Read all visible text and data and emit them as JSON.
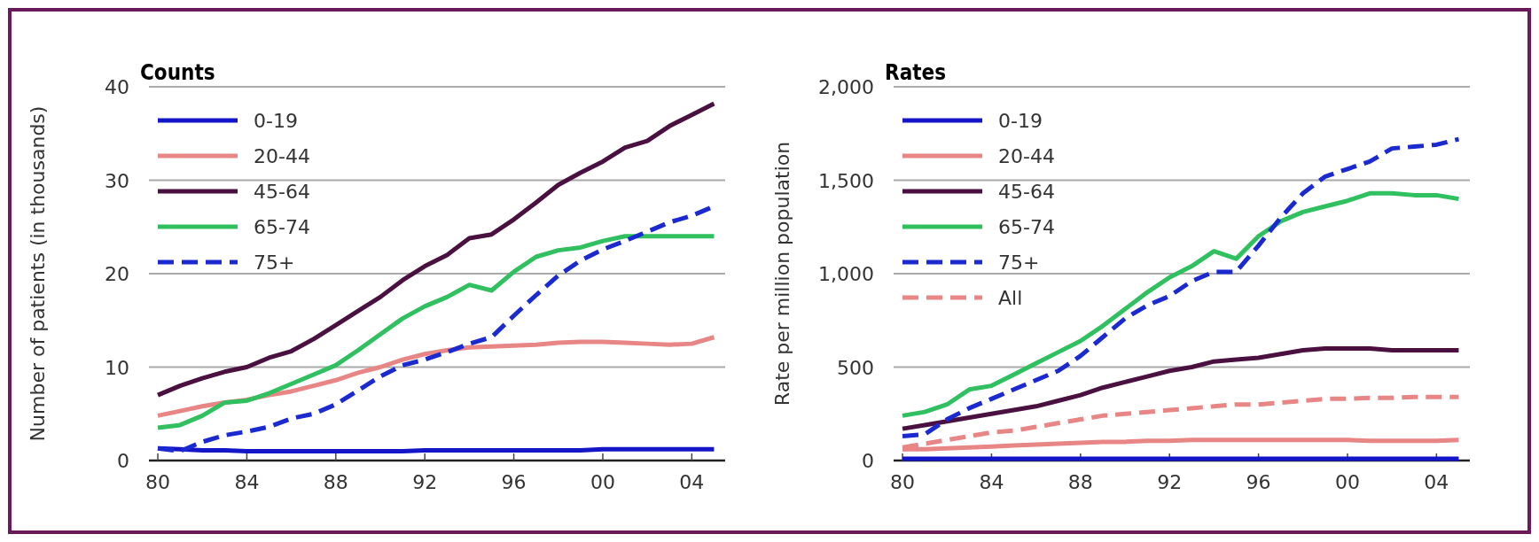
{
  "chart_data": [
    {
      "type": "line",
      "title": "Counts",
      "ylabel": "Number of patients (in thousands)",
      "x": [
        1980,
        1981,
        1982,
        1983,
        1984,
        1985,
        1986,
        1987,
        1988,
        1989,
        1990,
        1991,
        1992,
        1993,
        1994,
        1995,
        1996,
        1997,
        1998,
        1999,
        2000,
        2001,
        2002,
        2003,
        2004,
        2005
      ],
      "xlim": [
        1979.6,
        2005.5
      ],
      "xticks": [
        {
          "value": 1980,
          "label": "80"
        },
        {
          "value": 1984,
          "label": "84"
        },
        {
          "value": 1988,
          "label": "88"
        },
        {
          "value": 1992,
          "label": "92"
        },
        {
          "value": 1996,
          "label": "96"
        },
        {
          "value": 2000,
          "label": "00"
        },
        {
          "value": 2004,
          "label": "04"
        }
      ],
      "ylim": [
        0,
        40
      ],
      "yticks": [
        0,
        10,
        20,
        30,
        40
      ],
      "grid": "y",
      "legend": "top left",
      "line_style": "solid",
      "series": [
        {
          "name": "0-19",
          "color": "#1414c8",
          "values": [
            1.3,
            1.2,
            1.1,
            1.1,
            1.0,
            1.0,
            1.0,
            1.0,
            1.0,
            1.0,
            1.0,
            1.0,
            1.1,
            1.1,
            1.1,
            1.1,
            1.1,
            1.1,
            1.1,
            1.1,
            1.2,
            1.2,
            1.2,
            1.2,
            1.2,
            1.2
          ]
        },
        {
          "name": "20-44",
          "color": "#e88585",
          "values": [
            4.8,
            5.3,
            5.8,
            6.2,
            6.5,
            7,
            7.4,
            8,
            8.6,
            9.4,
            10,
            10.8,
            11.4,
            11.8,
            12.1,
            12.2,
            12.3,
            12.4,
            12.6,
            12.7,
            12.7,
            12.6,
            12.5,
            12.4,
            12.5,
            13.2
          ]
        },
        {
          "name": "45-64",
          "color": "#4a1040",
          "values": [
            7,
            8,
            8.8,
            9.5,
            10,
            11,
            11.7,
            13,
            14.5,
            16,
            17.5,
            19.3,
            20.8,
            22,
            23.8,
            24.2,
            25.8,
            27.6,
            29.5,
            30.8,
            32,
            33.5,
            34.2,
            35.8,
            37,
            38.2
          ]
        },
        {
          "name": "65-74",
          "color": "#30c060",
          "values": [
            3.5,
            3.8,
            4.8,
            6.2,
            6.4,
            7.2,
            8.2,
            9.2,
            10.2,
            11.8,
            13.5,
            15.2,
            16.5,
            17.5,
            18.8,
            18.2,
            20.2,
            21.8,
            22.5,
            22.8,
            23.5,
            24,
            24,
            24,
            24,
            24
          ]
        },
        {
          "name": "75+",
          "color": "#1a2ad0",
          "line_style": "dashed",
          "values": [
            1.3,
            1.0,
            2.0,
            2.7,
            3.1,
            3.6,
            4.5,
            5.0,
            6.0,
            7.5,
            9,
            10.2,
            10.8,
            11.6,
            12.5,
            13.2,
            15.5,
            17.7,
            19.8,
            21.4,
            22.6,
            23.5,
            24.5,
            25.5,
            26.2,
            27.2
          ]
        }
      ]
    },
    {
      "type": "line",
      "title": "Rates",
      "ylabel": "Rate per million population",
      "x": [
        1980,
        1981,
        1982,
        1983,
        1984,
        1985,
        1986,
        1987,
        1988,
        1989,
        1990,
        1991,
        1992,
        1993,
        1994,
        1995,
        1996,
        1997,
        1998,
        1999,
        2000,
        2001,
        2002,
        2003,
        2004,
        2005
      ],
      "xlim": [
        1979.6,
        2005.5
      ],
      "xticks": [
        {
          "value": 1980,
          "label": "80"
        },
        {
          "value": 1984,
          "label": "84"
        },
        {
          "value": 1988,
          "label": "88"
        },
        {
          "value": 1992,
          "label": "92"
        },
        {
          "value": 1996,
          "label": "96"
        },
        {
          "value": 2000,
          "label": "00"
        },
        {
          "value": 2004,
          "label": "04"
        }
      ],
      "ylim": [
        0,
        2000
      ],
      "yticks": [
        0,
        500,
        {
          "value": 1000,
          "label": "1,000"
        },
        {
          "value": 1500,
          "label": "1,500"
        },
        {
          "value": 2000,
          "label": "2,000"
        }
      ],
      "grid": "y",
      "legend": "top left",
      "line_style": "solid",
      "series": [
        {
          "name": "0-19",
          "color": "#1414c8",
          "values": [
            10,
            10,
            10,
            10,
            10,
            10,
            10,
            10,
            10,
            10,
            10,
            10,
            10,
            10,
            10,
            10,
            10,
            10,
            10,
            10,
            10,
            10,
            10,
            10,
            10,
            10
          ]
        },
        {
          "name": "20-44",
          "color": "#e88585",
          "values": [
            60,
            60,
            65,
            70,
            75,
            80,
            85,
            90,
            95,
            100,
            100,
            105,
            105,
            110,
            110,
            110,
            110,
            110,
            110,
            110,
            110,
            105,
            105,
            105,
            105,
            110
          ]
        },
        {
          "name": "45-64",
          "color": "#4a1040",
          "values": [
            170,
            190,
            210,
            230,
            250,
            270,
            290,
            320,
            350,
            390,
            420,
            450,
            480,
            500,
            530,
            540,
            550,
            570,
            590,
            600,
            600,
            600,
            590,
            590,
            590,
            590
          ]
        },
        {
          "name": "65-74",
          "color": "#30c060",
          "values": [
            240,
            260,
            300,
            380,
            400,
            460,
            520,
            580,
            640,
            720,
            810,
            900,
            980,
            1040,
            1120,
            1080,
            1200,
            1280,
            1330,
            1360,
            1390,
            1430,
            1430,
            1420,
            1420,
            1400
          ]
        },
        {
          "name": "75+",
          "color": "#1a2ad0",
          "line_style": "dashed",
          "values": [
            130,
            140,
            220,
            280,
            330,
            380,
            430,
            480,
            560,
            660,
            760,
            830,
            880,
            960,
            1010,
            1010,
            1150,
            1300,
            1430,
            1520,
            1560,
            1600,
            1670,
            1680,
            1690,
            1720
          ]
        },
        {
          "name": "All",
          "color": "#e88585",
          "line_style": "dashed",
          "values": [
            70,
            90,
            110,
            130,
            150,
            160,
            180,
            200,
            220,
            240,
            250,
            260,
            270,
            280,
            290,
            300,
            300,
            310,
            320,
            330,
            330,
            335,
            335,
            340,
            340,
            340
          ]
        }
      ]
    }
  ]
}
